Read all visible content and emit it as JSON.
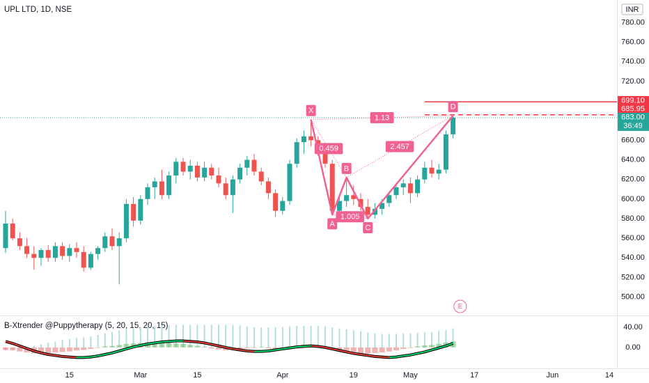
{
  "chart_data": [
    {
      "type": "candlestick",
      "title": "UPL LTD, 1D, NSE",
      "currency": "INR",
      "categories": [
        null,
        null,
        null,
        null,
        null,
        null,
        null,
        null,
        null,
        "15",
        null,
        null,
        null,
        null,
        null,
        null,
        null,
        null,
        null,
        "Mar",
        null,
        null,
        null,
        null,
        null,
        null,
        null,
        "15",
        null,
        null,
        null,
        null,
        null,
        null,
        null,
        null,
        null,
        null,
        null,
        "Apr",
        null,
        null,
        null,
        null,
        null,
        null,
        null,
        null,
        null,
        "19",
        null,
        null,
        null,
        null,
        null,
        null,
        null,
        "May",
        null,
        null,
        null,
        null,
        null,
        null,
        null,
        null,
        "17",
        null,
        null,
        null,
        null,
        null,
        null,
        null,
        null,
        null,
        null,
        "Jun",
        null,
        null,
        null,
        null,
        null,
        null,
        null,
        "14"
      ],
      "open": [
        550,
        575,
        560,
        552,
        544,
        540,
        548,
        540,
        552,
        542,
        550,
        546,
        530,
        544,
        550,
        562,
        552,
        560,
        595,
        578,
        600,
        612,
        618,
        604,
        624,
        638,
        628,
        634,
        622,
        632,
        624,
        616,
        604,
        620,
        632,
        640,
        628,
        618,
        606,
        588,
        598,
        636,
        658,
        664,
        660,
        648,
        636,
        588,
        598,
        604,
        600,
        592,
        584,
        590,
        596,
        604,
        612,
        616,
        606,
        620,
        632,
        626,
        630,
        666,
        null,
        null,
        null,
        null,
        null,
        null,
        null,
        null,
        null,
        null,
        null,
        null,
        null,
        null,
        null,
        null,
        null,
        null,
        null,
        null,
        null,
        null
      ],
      "high": [
        588,
        580,
        566,
        560,
        552,
        550,
        553,
        556,
        556,
        554,
        556,
        552,
        546,
        552,
        566,
        570,
        566,
        600,
        602,
        604,
        616,
        622,
        630,
        628,
        642,
        642,
        640,
        638,
        638,
        636,
        632,
        622,
        624,
        636,
        644,
        646,
        632,
        622,
        610,
        602,
        640,
        662,
        670,
        681,
        664,
        654,
        640,
        604,
        622,
        614,
        606,
        600,
        596,
        600,
        608,
        616,
        620,
        622,
        624,
        638,
        640,
        636,
        670,
        684,
        null,
        null,
        null,
        null,
        null,
        null,
        null,
        null,
        null,
        null,
        null,
        null,
        null,
        null,
        null,
        null,
        null,
        null,
        null,
        null,
        null,
        null
      ],
      "low": [
        545,
        558,
        548,
        540,
        528,
        532,
        536,
        536,
        538,
        536,
        540,
        526,
        528,
        538,
        546,
        548,
        513,
        556,
        572,
        574,
        594,
        600,
        600,
        600,
        616,
        624,
        620,
        618,
        618,
        620,
        612,
        600,
        586,
        616,
        624,
        624,
        614,
        600,
        582,
        584,
        594,
        632,
        646,
        654,
        644,
        632,
        584,
        580,
        592,
        594,
        588,
        580,
        580,
        584,
        592,
        600,
        604,
        596,
        602,
        616,
        622,
        620,
        626,
        662,
        null,
        null,
        null,
        null,
        null,
        null,
        null,
        null,
        null,
        null,
        null,
        null,
        null,
        null,
        null,
        null,
        null,
        null,
        null,
        null,
        null,
        null
      ],
      "close": [
        575,
        560,
        552,
        544,
        540,
        548,
        540,
        552,
        542,
        550,
        546,
        530,
        544,
        550,
        562,
        552,
        560,
        595,
        578,
        600,
        612,
        618,
        604,
        624,
        638,
        628,
        634,
        622,
        632,
        624,
        616,
        604,
        620,
        632,
        640,
        628,
        618,
        606,
        588,
        598,
        636,
        658,
        664,
        660,
        648,
        636,
        588,
        598,
        604,
        600,
        592,
        584,
        590,
        596,
        604,
        612,
        616,
        606,
        620,
        632,
        626,
        630,
        666,
        683,
        null,
        null,
        null,
        null,
        null,
        null,
        null,
        null,
        null,
        null,
        null,
        null,
        null,
        null,
        null,
        null,
        null,
        null,
        null,
        null,
        null,
        null
      ],
      "up_color": "#26a69a",
      "down_color": "#ef5350",
      "ylim": [
        482,
        803
      ],
      "yticks": [
        {
          "value": 780,
          "label": "780.00"
        },
        {
          "value": 760,
          "label": "760.00"
        },
        {
          "value": 740,
          "label": "740.00"
        },
        {
          "value": 720,
          "label": "720.00"
        },
        {
          "value": 700,
          "label": "700.00"
        },
        {
          "value": 680,
          "label": "680.00"
        },
        {
          "value": 660,
          "label": "660.00"
        },
        {
          "value": 640,
          "label": "640.00"
        },
        {
          "value": 620,
          "label": "620.00"
        },
        {
          "value": 600,
          "label": "600.00"
        },
        {
          "value": 580,
          "label": "580.00"
        },
        {
          "value": 560,
          "label": "560.00"
        },
        {
          "value": 540,
          "label": "540.00"
        },
        {
          "value": 520,
          "label": "520.00"
        },
        {
          "value": 500,
          "label": "500.00"
        }
      ],
      "price_lines": [
        {
          "value": 699.1,
          "label": "699.10",
          "color": "#f23645",
          "style": "solid"
        },
        {
          "value": 685.95,
          "label": "685.95",
          "color": "#f23645",
          "style": "dashed"
        }
      ],
      "current_price": {
        "value": 683,
        "label": "683.00",
        "countdown": "36:49",
        "color": "#26a69a"
      },
      "pattern": {
        "color": "#f06292",
        "points": [
          {
            "label": "X",
            "index": 43,
            "price": 681
          },
          {
            "label": "A",
            "index": 46,
            "price": 584
          },
          {
            "label": "B",
            "index": 48,
            "price": 622
          },
          {
            "label": "C",
            "index": 51,
            "price": 580
          },
          {
            "label": "D",
            "index": 63,
            "price": 685
          }
        ],
        "ratios": {
          "XB": 0.459,
          "XD": 1.13,
          "AC": 1.005,
          "BD": 2.457
        }
      },
      "event_marker": {
        "label": "E",
        "index": 64
      }
    },
    {
      "type": "oscillator",
      "title": "B-Xtrender @Puppytherapy (5, 20, 15, 20, 15)",
      "ylim": [
        -39,
        61
      ],
      "yticks": [
        {
          "value": 40,
          "label": "40.00"
        },
        {
          "value": 0,
          "label": "0.00"
        }
      ],
      "series": [
        {
          "style": "long-histogram",
          "up_color": "#b2dfdb",
          "down_color": "#f8bbd0",
          "values": [
            -6,
            -4,
            -2,
            0,
            3,
            6,
            9,
            12,
            15,
            17,
            19,
            20,
            22,
            25,
            28,
            31,
            34,
            36,
            38,
            40,
            41,
            42,
            43,
            44,
            45,
            45,
            45,
            45,
            45,
            45,
            45,
            45,
            45,
            44,
            42,
            40,
            40,
            40,
            40,
            41,
            42,
            43,
            43,
            43,
            43,
            42,
            40,
            38,
            36,
            34,
            32,
            30,
            28,
            27,
            27,
            27,
            28,
            28,
            29,
            30,
            31,
            33,
            35,
            38
          ]
        },
        {
          "style": "histogram",
          "up_color": "#66bb6a",
          "down_color": "#e57373",
          "values": [
            -5,
            -6,
            -8,
            -10,
            -12,
            -12,
            -11,
            -10,
            -9,
            -8,
            -6,
            -5,
            -3,
            -1,
            2,
            3,
            5,
            7,
            8,
            9,
            10,
            10,
            9,
            9,
            8,
            7,
            5,
            3,
            1,
            -2,
            -4,
            -6,
            -5,
            -3,
            -2,
            -1,
            1,
            -2,
            -5,
            -3,
            2,
            4,
            6,
            6,
            4,
            2,
            -4,
            -7,
            -9,
            -10,
            -12,
            -12,
            -11,
            -10,
            -8,
            -6,
            -3,
            -1,
            2,
            4,
            5,
            7,
            10,
            12
          ]
        },
        {
          "style": "line",
          "color": "#000000",
          "up_color": "#00e676",
          "down_color": "#f44336",
          "values": [
            12,
            8,
            3,
            -2,
            -7,
            -11,
            -14,
            -16,
            -18,
            -19,
            -20,
            -20,
            -19,
            -17,
            -14,
            -11,
            -7,
            -3,
            1,
            4,
            7,
            9,
            11,
            12,
            13,
            13,
            12,
            11,
            9,
            6,
            3,
            0,
            -3,
            -5,
            -7,
            -8,
            -8,
            -7,
            -5,
            -3,
            -1,
            1,
            2,
            3,
            2,
            0,
            -3,
            -6,
            -9,
            -12,
            -14,
            -16,
            -18,
            -19,
            -20,
            -19,
            -17,
            -15,
            -12,
            -9,
            -5,
            -1,
            3,
            8
          ]
        }
      ]
    }
  ]
}
